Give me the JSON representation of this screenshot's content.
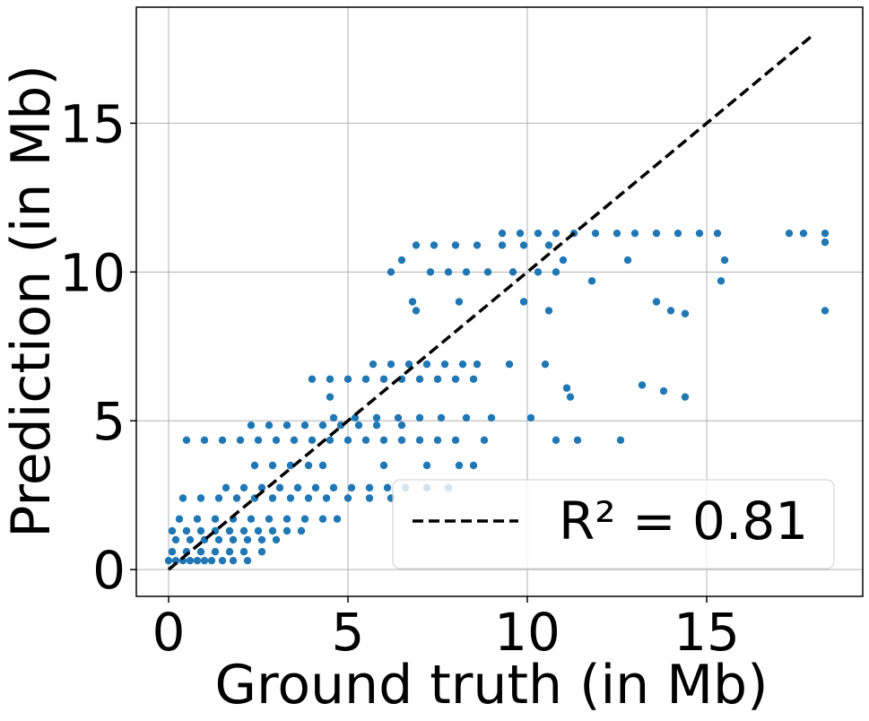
{
  "chart_data": {
    "type": "scatter",
    "x_label": "Ground truth (in Mb)",
    "y_label": "Prediction (in Mb)",
    "xlim": [
      -0.9,
      19.35
    ],
    "ylim": [
      -0.9,
      18.9
    ],
    "xticks": [
      0,
      5,
      10,
      15
    ],
    "yticks": [
      0,
      5,
      10,
      15
    ],
    "grid": true,
    "legend": "lower right",
    "series": [
      {
        "type": "scatter",
        "color": "#1f77b4",
        "x": [
          0,
          0.2,
          0.4,
          0.6,
          0.8,
          1.0,
          1.2,
          1.5,
          1.8,
          2.2,
          0.1,
          0.5,
          0.9,
          1.3,
          1.7,
          2.1,
          2.6,
          0.2,
          0.6,
          1.0,
          1.4,
          1.8,
          2.2,
          2.6,
          3.0,
          0.1,
          0.5,
          0.9,
          1.3,
          1.7,
          2.1,
          2.5,
          2.9,
          3.3,
          3.7,
          0.3,
          0.8,
          1.3,
          1.8,
          2.3,
          2.8,
          3.3,
          3.8,
          4.3,
          4.7,
          0.4,
          0.9,
          1.4,
          1.9,
          2.4,
          2.9,
          3.4,
          3.9,
          4.4,
          5.0,
          5.6,
          6.2,
          1.6,
          2.1,
          2.6,
          3.1,
          3.6,
          4.1,
          4.6,
          5.1,
          5.6,
          6.1,
          6.6,
          7.2,
          7.8,
          2.4,
          2.9,
          3.4,
          3.9,
          4.3,
          6.0,
          7.2,
          8.1,
          8.5,
          0.5,
          1.0,
          1.5,
          2.0,
          2.5,
          3.0,
          3.5,
          4.0,
          4.5,
          5.0,
          5.5,
          6.0,
          6.5,
          7.0,
          7.5,
          8.0,
          8.8,
          10.8,
          11.4,
          12.6,
          2.3,
          2.8,
          3.3,
          3.8,
          4.3,
          4.8,
          5.3,
          5.8,
          6.5,
          4.6,
          5.2,
          5.8,
          6.4,
          7.0,
          7.6,
          8.3,
          9.0,
          10.1,
          4.0,
          4.5,
          5.0,
          5.5,
          6.0,
          6.5,
          7.0,
          7.5,
          8.0,
          8.5,
          5.7,
          6.2,
          6.7,
          7.2,
          7.7,
          8.2,
          8.6,
          9.5,
          10.5,
          4.5,
          11.2,
          14.4,
          13.8,
          11.1,
          13.2,
          6.2,
          7.3,
          7.8,
          8.3,
          8.9,
          9.6,
          10.3,
          10.8,
          6.9,
          7.4,
          8.0,
          8.6,
          9.3,
          9.9,
          10.6,
          9.3,
          9.8,
          10.3,
          10.8,
          11.3,
          11.9,
          12.5,
          13.0,
          13.6,
          14.2,
          14.8,
          15.3,
          17.3,
          17.7,
          18.3,
          6.8,
          8.1,
          9.9,
          13.6,
          6.9,
          10.6,
          14.0,
          14.4,
          18.3,
          11.8,
          15.4,
          6.5,
          11.0,
          12.8,
          15.5,
          18.3
        ],
        "values": [
          0.3,
          0.3,
          0.3,
          0.3,
          0.3,
          0.3,
          0.3,
          0.3,
          0.3,
          0.3,
          0.6,
          0.6,
          0.6,
          0.6,
          0.6,
          0.6,
          0.6,
          1.0,
          1.0,
          1.0,
          1.0,
          1.0,
          1.0,
          1.0,
          1.0,
          1.3,
          1.3,
          1.3,
          1.3,
          1.3,
          1.3,
          1.3,
          1.3,
          1.3,
          1.3,
          1.7,
          1.7,
          1.7,
          1.7,
          1.7,
          1.7,
          1.7,
          1.7,
          1.7,
          1.7,
          2.4,
          2.4,
          2.4,
          2.4,
          2.4,
          2.4,
          2.4,
          2.4,
          2.4,
          2.4,
          2.4,
          2.4,
          2.75,
          2.75,
          2.75,
          2.75,
          2.75,
          2.75,
          2.75,
          2.75,
          2.75,
          2.75,
          2.75,
          2.75,
          2.75,
          3.5,
          3.5,
          3.5,
          3.5,
          3.5,
          3.5,
          3.5,
          3.5,
          3.5,
          4.35,
          4.35,
          4.35,
          4.35,
          4.35,
          4.35,
          4.35,
          4.35,
          4.35,
          4.35,
          4.35,
          4.35,
          4.35,
          4.35,
          4.35,
          4.35,
          4.35,
          4.35,
          4.35,
          4.35,
          4.85,
          4.85,
          4.85,
          4.85,
          4.85,
          4.85,
          4.85,
          4.85,
          4.85,
          5.1,
          5.1,
          5.1,
          5.1,
          5.1,
          5.1,
          5.1,
          5.1,
          5.1,
          6.4,
          6.4,
          6.4,
          6.4,
          6.4,
          6.4,
          6.4,
          6.4,
          6.4,
          6.4,
          6.9,
          6.9,
          6.9,
          6.9,
          6.9,
          6.9,
          6.9,
          6.9,
          6.9,
          5.8,
          5.8,
          5.8,
          6.0,
          6.1,
          6.2,
          10.0,
          10.0,
          10.0,
          10.0,
          10.0,
          10.0,
          10.0,
          10.0,
          10.9,
          10.9,
          10.9,
          10.9,
          10.9,
          10.9,
          10.9,
          11.3,
          11.3,
          11.3,
          11.3,
          11.3,
          11.3,
          11.3,
          11.3,
          11.3,
          11.3,
          11.3,
          11.3,
          11.3,
          11.3,
          11.3,
          9.0,
          9.0,
          9.0,
          9.0,
          8.7,
          8.7,
          8.7,
          8.6,
          8.7,
          9.7,
          9.7,
          10.4,
          10.4,
          10.4,
          10.4,
          11.0
        ]
      },
      {
        "type": "line",
        "name": "R² = 0.81",
        "color": "#000000",
        "dashed": true,
        "x": [
          0,
          18
        ],
        "values": [
          0,
          18
        ]
      }
    ]
  }
}
